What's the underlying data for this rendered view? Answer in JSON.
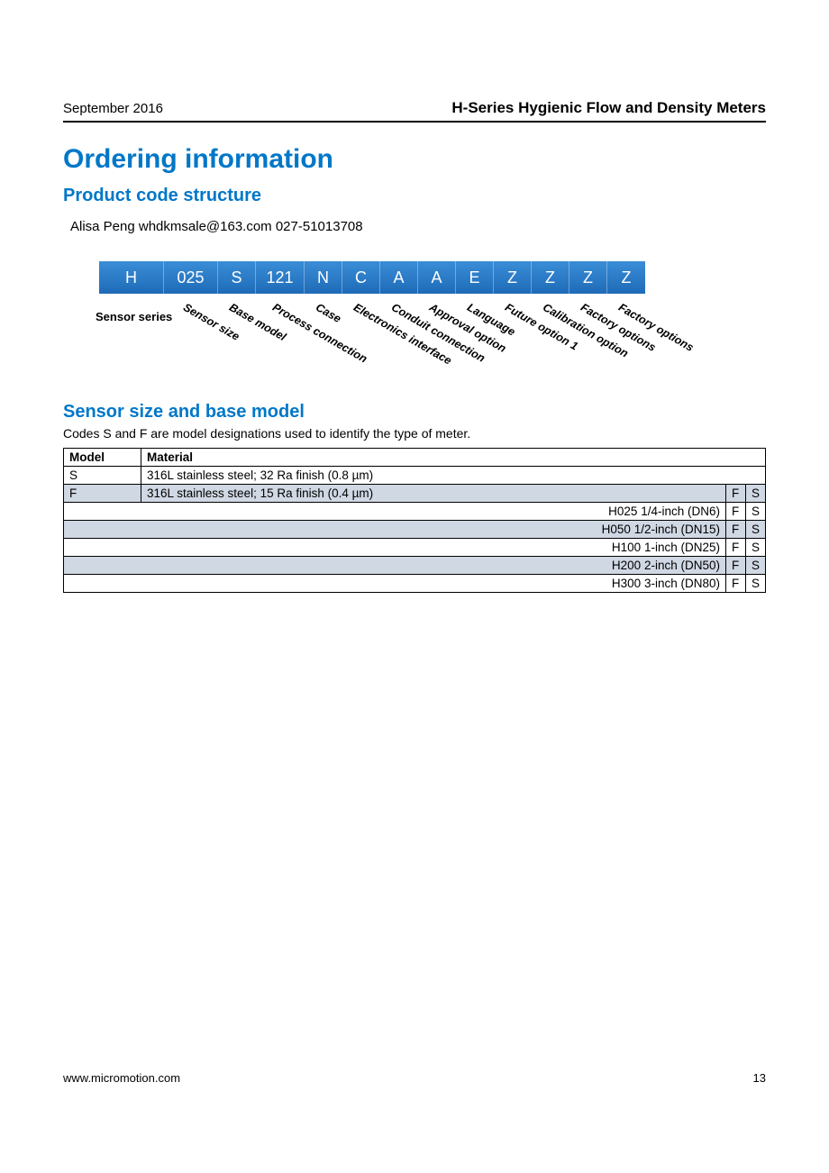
{
  "header": {
    "left": "September 2016",
    "right": "H-Series Hygienic Flow and Density Meters"
  },
  "title": "Ordering information",
  "subtitle": "Product code structure",
  "contact": "Alisa Peng  whdkmsale@163.com  027-51013708",
  "code_strip": {
    "cells": [
      {
        "text": "H",
        "width": 72
      },
      {
        "text": "025",
        "width": 60
      },
      {
        "text": "S",
        "width": 42
      },
      {
        "text": "121",
        "width": 54
      },
      {
        "text": "N",
        "width": 42
      },
      {
        "text": "C",
        "width": 42
      },
      {
        "text": "A",
        "width": 42
      },
      {
        "text": "A",
        "width": 42
      },
      {
        "text": "E",
        "width": 42
      },
      {
        "text": "Z",
        "width": 42
      },
      {
        "text": "Z",
        "width": 42
      },
      {
        "text": "Z",
        "width": 42
      },
      {
        "text": "Z",
        "width": 42
      }
    ],
    "sensor_series_label": "Sensor series",
    "diag_labels": [
      "Sensor size",
      "Base model",
      "Process connection",
      "Case",
      "Electronics interface",
      "Conduit connection",
      "Approval option",
      "Language",
      "Future option 1",
      "Calibration option",
      "Factory options",
      "Factory options"
    ]
  },
  "section": {
    "title": "Sensor size and base model",
    "note": "Codes S and F are model designations used to identify the type of meter.",
    "headers": {
      "model": "Model",
      "material": "Material"
    },
    "material_rows": [
      {
        "model": "S",
        "material": "316L stainless steel; 32 Ra finish (0.8 µm)"
      },
      {
        "model": "F",
        "material": "316L stainless steel; 15 Ra finish (0.4 µm)"
      }
    ],
    "fs_header": {
      "f": "F",
      "s": "S"
    },
    "size_rows": [
      {
        "desc": "H025 1/4-inch (DN6)",
        "f": "F",
        "s": "S",
        "shaded": false
      },
      {
        "desc": "H050 1/2-inch (DN15)",
        "f": "F",
        "s": "S",
        "shaded": true
      },
      {
        "desc": "H100 1-inch (DN25)",
        "f": "F",
        "s": "S",
        "shaded": false
      },
      {
        "desc": "H200 2-inch (DN50)",
        "f": "F",
        "s": "S",
        "shaded": true
      },
      {
        "desc": "H300 3-inch (DN80)",
        "f": "F",
        "s": "S",
        "shaded": false
      }
    ]
  },
  "footer": {
    "url": "www.micromotion.com",
    "page": "13"
  },
  "colors": {
    "accent": "#0077c8",
    "strip_top": "#3a8dd6",
    "strip_bottom": "#1e6bb8",
    "shade": "#d0d8e4"
  }
}
